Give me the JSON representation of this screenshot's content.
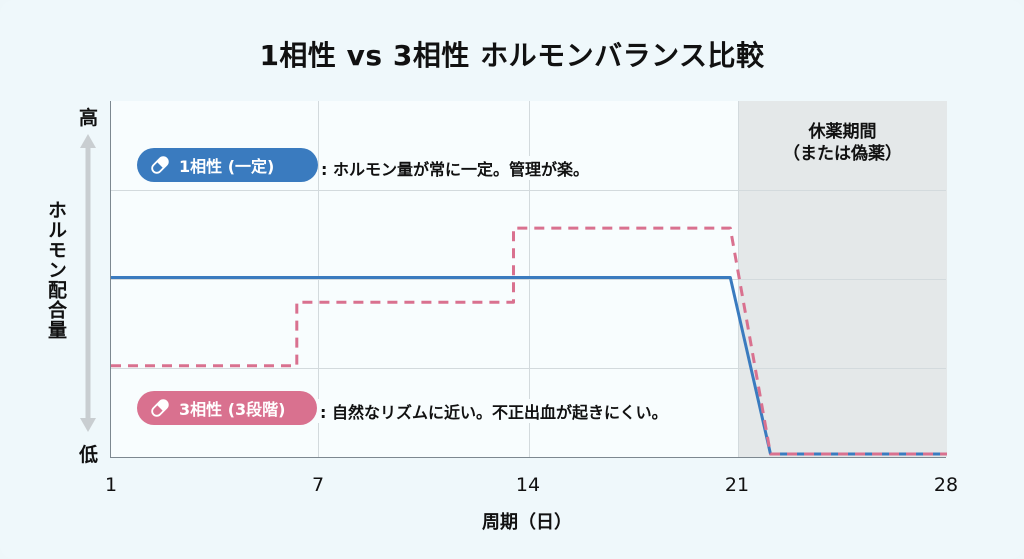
{
  "title": "1相性 vs 3相性 ホルモンバランス比較",
  "y_axis": {
    "title": "ホルモン配合量",
    "high_label": "高",
    "low_label": "低"
  },
  "x_axis": {
    "title": "周期（日）",
    "ticks": [
      "1",
      "7",
      "14",
      "21",
      "28"
    ]
  },
  "washout": {
    "line1": "休薬期間",
    "line2": "（または偽薬）",
    "color": "#e4e8e9"
  },
  "legend": {
    "monophasic": {
      "label": "1相性 (一定)",
      "description": ": ホルモン量が常に一定。管理が楽。",
      "color": "#3a7bbf",
      "icon": "pill-icon"
    },
    "triphasic": {
      "label": "3相性 (3段階)",
      "description": ": 自然なリズムに近い。不正出血が起きにくい。",
      "color": "#d9718f",
      "icon": "pill-icon"
    }
  },
  "chart_data": {
    "type": "line",
    "title": "1相性 vs 3相性 ホルモンバランス比較",
    "xlabel": "周期（日）",
    "ylabel": "ホルモン配合量",
    "x_ticks": [
      1,
      7,
      14,
      21,
      28
    ],
    "xlim": [
      1,
      28
    ],
    "ylim": [
      0,
      1
    ],
    "y_tick_labels": {
      "0": "低",
      "1": "高"
    },
    "grid": true,
    "shaded_region": {
      "x_start": 21,
      "x_end": 28,
      "label": "休薬期間（または偽薬）"
    },
    "series": [
      {
        "name": "1相性 (一定)",
        "style": "solid",
        "color": "#3a7bbf",
        "points": [
          [
            1,
            0.5
          ],
          [
            21,
            0.5
          ],
          [
            22.3,
            0.0
          ],
          [
            28,
            0.0
          ]
        ]
      },
      {
        "name": "3相性 (3段階)",
        "style": "dashed",
        "color": "#d9718f",
        "points": [
          [
            1,
            0.25
          ],
          [
            7,
            0.25
          ],
          [
            7,
            0.43
          ],
          [
            14,
            0.43
          ],
          [
            14,
            0.64
          ],
          [
            21,
            0.64
          ],
          [
            22.3,
            0.0
          ],
          [
            28,
            0.0
          ]
        ]
      }
    ]
  }
}
